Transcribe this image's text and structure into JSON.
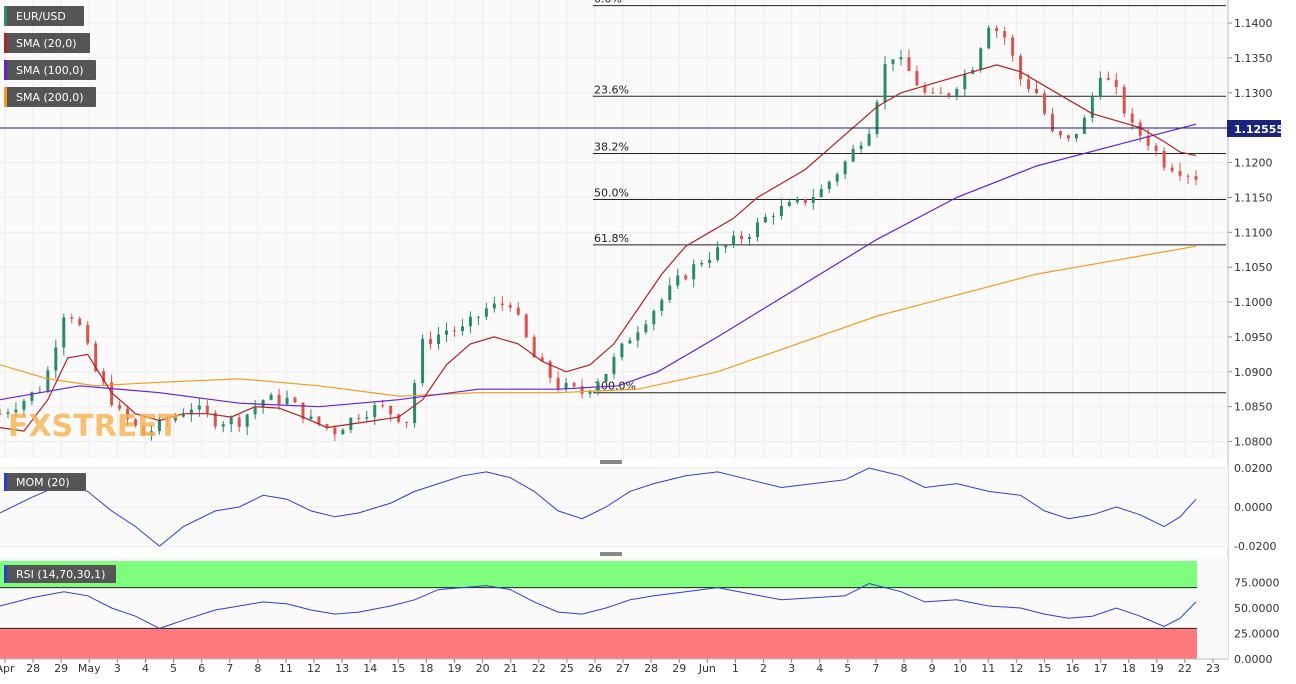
{
  "chart_data": {
    "type": "candlestick",
    "symbol": "EUR/USD",
    "watermark": "FXSTREET",
    "last_price": {
      "label": "1.12555",
      "value": 1.12555
    },
    "colors": {
      "up": "#2b8a6a",
      "down": "#d9534f",
      "sma20": "#b22222",
      "sma100": "#6a1fd1",
      "sma200": "#f29b1d",
      "oscillator": "#2a3fd0",
      "grid": "#ececec",
      "rsi_overbought": "#7dff7d",
      "rsi_oversold": "#ff7b7b",
      "tag_bg": "#555555",
      "price_tag_bg": "#1a237e"
    },
    "indicators": [
      {
        "key": "price",
        "label": "EUR/USD",
        "color": "#2b8a6a"
      },
      {
        "key": "sma20",
        "label": "SMA (20,0)",
        "color": "#b22222"
      },
      {
        "key": "sma100",
        "label": "SMA (100,0)",
        "color": "#6a1fd1"
      },
      {
        "key": "sma200",
        "label": "SMA (200,0)",
        "color": "#f29b1d"
      }
    ],
    "price_axis": {
      "min": 1.0775,
      "max": 1.1433,
      "ticks": [
        "1.0800",
        "1.0850",
        "1.0900",
        "1.0950",
        "1.1000",
        "1.1050",
        "1.1100",
        "1.1150",
        "1.1200",
        "1.1250",
        "1.1300",
        "1.1350",
        "1.1400"
      ]
    },
    "fibonacci": [
      {
        "label": "0.0%",
        "value": 1.1425
      },
      {
        "label": "23.6%",
        "value": 1.1295
      },
      {
        "label": "38.2%",
        "value": 1.1213
      },
      {
        "label": "50.0%",
        "value": 1.1147
      },
      {
        "label": "61.8%",
        "value": 1.1082
      },
      {
        "label": "100.0%",
        "value": 1.087
      }
    ],
    "x_labels": [
      "Apr",
      "28",
      "29",
      "May",
      "3",
      "4",
      "5",
      "6",
      "7",
      "8",
      "11",
      "12",
      "13",
      "14",
      "15",
      "18",
      "19",
      "20",
      "21",
      "22",
      "25",
      "26",
      "27",
      "28",
      "29",
      "Jun",
      "1",
      "2",
      "3",
      "4",
      "5",
      "7",
      "8",
      "9",
      "10",
      "11",
      "12",
      "15",
      "16",
      "17",
      "18",
      "19",
      "22",
      "23"
    ],
    "close_path": [
      [
        0,
        1.084
      ],
      [
        6,
        1.086
      ],
      [
        11,
        1.088
      ],
      [
        16,
        1.0985
      ],
      [
        19,
        1.098
      ],
      [
        24,
        1.09
      ],
      [
        30,
        1.084
      ],
      [
        36,
        1.081
      ],
      [
        42,
        1.083
      ],
      [
        48,
        1.085
      ],
      [
        54,
        1.083
      ],
      [
        60,
        1.083
      ],
      [
        66,
        1.086
      ],
      [
        72,
        1.086
      ],
      [
        78,
        1.083
      ],
      [
        84,
        1.0815
      ],
      [
        90,
        1.084
      ],
      [
        95,
        1.085
      ],
      [
        102,
        1.083
      ],
      [
        106,
        1.094
      ],
      [
        112,
        1.096
      ],
      [
        116,
        1.096
      ],
      [
        122,
        1.099
      ],
      [
        128,
        1.1
      ],
      [
        134,
        1.092
      ],
      [
        140,
        1.088
      ],
      [
        146,
        1.087
      ],
      [
        152,
        1.09
      ],
      [
        158,
        1.095
      ],
      [
        164,
        1.099
      ],
      [
        170,
        1.103
      ],
      [
        176,
        1.106
      ],
      [
        182,
        1.108
      ],
      [
        188,
        1.11
      ],
      [
        194,
        1.113
      ],
      [
        200,
        1.114
      ],
      [
        206,
        1.116
      ],
      [
        212,
        1.12
      ],
      [
        218,
        1.125
      ],
      [
        223,
        1.136
      ],
      [
        228,
        1.133
      ],
      [
        233,
        1.129
      ],
      [
        238,
        1.13
      ],
      [
        244,
        1.134
      ],
      [
        248,
        1.14
      ],
      [
        252,
        1.138
      ],
      [
        256,
        1.132
      ],
      [
        260,
        1.13
      ],
      [
        264,
        1.124
      ],
      [
        268,
        1.123
      ],
      [
        272,
        1.126
      ],
      [
        276,
        1.133
      ],
      [
        280,
        1.13
      ],
      [
        284,
        1.125
      ],
      [
        288,
        1.123
      ],
      [
        292,
        1.12
      ],
      [
        296,
        1.119
      ],
      [
        300,
        1.118
      ]
    ],
    "sma20": [
      [
        0,
        1.082
      ],
      [
        6,
        1.0815
      ],
      [
        12,
        1.086
      ],
      [
        17,
        1.092
      ],
      [
        22,
        1.0925
      ],
      [
        28,
        1.087
      ],
      [
        34,
        1.084
      ],
      [
        40,
        1.083
      ],
      [
        46,
        1.084
      ],
      [
        52,
        1.084
      ],
      [
        58,
        1.0835
      ],
      [
        64,
        1.085
      ],
      [
        70,
        1.0848
      ],
      [
        76,
        1.0835
      ],
      [
        82,
        1.082
      ],
      [
        88,
        1.0825
      ],
      [
        94,
        1.083
      ],
      [
        100,
        1.0835
      ],
      [
        106,
        1.086
      ],
      [
        112,
        1.091
      ],
      [
        118,
        1.094
      ],
      [
        124,
        1.095
      ],
      [
        130,
        1.094
      ],
      [
        136,
        1.0915
      ],
      [
        142,
        1.09
      ],
      [
        148,
        1.091
      ],
      [
        154,
        1.094
      ],
      [
        160,
        1.099
      ],
      [
        166,
        1.104
      ],
      [
        172,
        1.108
      ],
      [
        178,
        1.11
      ],
      [
        184,
        1.112
      ],
      [
        190,
        1.115
      ],
      [
        196,
        1.117
      ],
      [
        202,
        1.119
      ],
      [
        208,
        1.122
      ],
      [
        214,
        1.125
      ],
      [
        220,
        1.128
      ],
      [
        226,
        1.13
      ],
      [
        232,
        1.131
      ],
      [
        238,
        1.132
      ],
      [
        244,
        1.133
      ],
      [
        250,
        1.134
      ],
      [
        256,
        1.133
      ],
      [
        262,
        1.131
      ],
      [
        268,
        1.129
      ],
      [
        274,
        1.127
      ],
      [
        280,
        1.126
      ],
      [
        286,
        1.125
      ],
      [
        292,
        1.123
      ],
      [
        296,
        1.1215
      ],
      [
        300,
        1.121
      ]
    ],
    "sma100": [
      [
        0,
        1.086
      ],
      [
        20,
        1.088
      ],
      [
        40,
        1.087
      ],
      [
        60,
        1.0855
      ],
      [
        80,
        1.085
      ],
      [
        100,
        1.086
      ],
      [
        120,
        1.0875
      ],
      [
        140,
        1.0875
      ],
      [
        155,
        1.088
      ],
      [
        165,
        1.09
      ],
      [
        180,
        1.095
      ],
      [
        200,
        1.102
      ],
      [
        220,
        1.109
      ],
      [
        240,
        1.115
      ],
      [
        260,
        1.1195
      ],
      [
        280,
        1.1225
      ],
      [
        290,
        1.124
      ],
      [
        300,
        1.1255
      ]
    ],
    "sma200": [
      [
        0,
        1.091
      ],
      [
        12,
        1.089
      ],
      [
        24,
        1.088
      ],
      [
        40,
        1.0885
      ],
      [
        60,
        1.089
      ],
      [
        80,
        1.088
      ],
      [
        100,
        1.0865
      ],
      [
        120,
        1.087
      ],
      [
        140,
        1.087
      ],
      [
        160,
        1.0875
      ],
      [
        180,
        1.09
      ],
      [
        200,
        1.094
      ],
      [
        220,
        1.098
      ],
      [
        240,
        1.101
      ],
      [
        260,
        1.104
      ],
      [
        280,
        1.106
      ],
      [
        300,
        1.108
      ]
    ],
    "mom": {
      "label": "MOM (20)",
      "ticks": [
        "0.0200",
        "0.0000",
        "-0.0200"
      ],
      "min": -0.022,
      "max": 0.021,
      "path": [
        [
          0,
          -0.003
        ],
        [
          8,
          0.005
        ],
        [
          16,
          0.012
        ],
        [
          22,
          0.008
        ],
        [
          28,
          -0.002
        ],
        [
          34,
          -0.01
        ],
        [
          40,
          -0.02
        ],
        [
          46,
          -0.01
        ],
        [
          54,
          -0.002
        ],
        [
          60,
          0.0
        ],
        [
          66,
          0.006
        ],
        [
          72,
          0.004
        ],
        [
          78,
          -0.002
        ],
        [
          84,
          -0.005
        ],
        [
          90,
          -0.003
        ],
        [
          98,
          0.002
        ],
        [
          104,
          0.008
        ],
        [
          110,
          0.012
        ],
        [
          116,
          0.016
        ],
        [
          122,
          0.018
        ],
        [
          128,
          0.015
        ],
        [
          134,
          0.008
        ],
        [
          140,
          -0.002
        ],
        [
          146,
          -0.006
        ],
        [
          152,
          0.0
        ],
        [
          158,
          0.008
        ],
        [
          164,
          0.012
        ],
        [
          172,
          0.016
        ],
        [
          180,
          0.018
        ],
        [
          188,
          0.014
        ],
        [
          196,
          0.01
        ],
        [
          204,
          0.012
        ],
        [
          212,
          0.014
        ],
        [
          218,
          0.02
        ],
        [
          226,
          0.016
        ],
        [
          232,
          0.01
        ],
        [
          240,
          0.012
        ],
        [
          248,
          0.008
        ],
        [
          256,
          0.006
        ],
        [
          262,
          -0.002
        ],
        [
          268,
          -0.006
        ],
        [
          274,
          -0.004
        ],
        [
          280,
          0.0
        ],
        [
          286,
          -0.004
        ],
        [
          292,
          -0.01
        ],
        [
          296,
          -0.005
        ],
        [
          300,
          0.004
        ]
      ]
    },
    "rsi": {
      "label": "RSI (14,70,30,1)",
      "ticks": [
        "75.0000",
        "50.0000",
        "25.0000",
        "0.0000"
      ],
      "min": 0,
      "max": 100,
      "overbought": 70,
      "oversold": 30,
      "path": [
        [
          0,
          52
        ],
        [
          8,
          60
        ],
        [
          16,
          66
        ],
        [
          22,
          62
        ],
        [
          28,
          50
        ],
        [
          34,
          42
        ],
        [
          40,
          30
        ],
        [
          46,
          38
        ],
        [
          54,
          48
        ],
        [
          60,
          52
        ],
        [
          66,
          56
        ],
        [
          72,
          54
        ],
        [
          78,
          48
        ],
        [
          84,
          44
        ],
        [
          90,
          46
        ],
        [
          98,
          52
        ],
        [
          104,
          58
        ],
        [
          110,
          68
        ],
        [
          116,
          70
        ],
        [
          122,
          72
        ],
        [
          128,
          68
        ],
        [
          134,
          56
        ],
        [
          140,
          46
        ],
        [
          146,
          44
        ],
        [
          152,
          50
        ],
        [
          158,
          58
        ],
        [
          164,
          62
        ],
        [
          172,
          66
        ],
        [
          180,
          70
        ],
        [
          188,
          64
        ],
        [
          196,
          58
        ],
        [
          204,
          60
        ],
        [
          212,
          62
        ],
        [
          218,
          74
        ],
        [
          226,
          66
        ],
        [
          232,
          56
        ],
        [
          240,
          58
        ],
        [
          248,
          52
        ],
        [
          256,
          50
        ],
        [
          262,
          44
        ],
        [
          268,
          40
        ],
        [
          274,
          42
        ],
        [
          280,
          50
        ],
        [
          286,
          42
        ],
        [
          292,
          32
        ],
        [
          296,
          40
        ],
        [
          300,
          56
        ]
      ]
    }
  }
}
